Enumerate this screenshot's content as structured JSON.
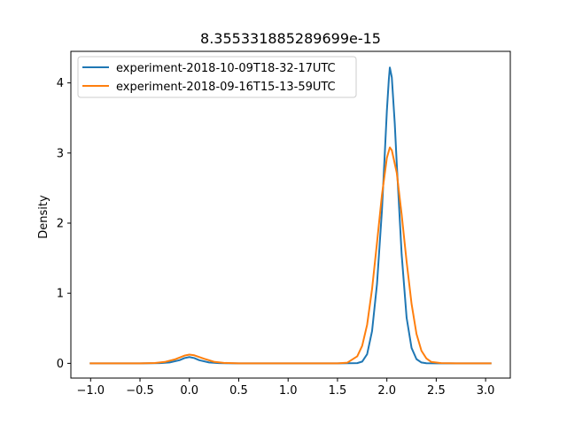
{
  "chart_data": {
    "type": "line",
    "title": "8.355331885289699e-15",
    "xlabel": "",
    "ylabel": "Density",
    "xlim": [
      -1.2,
      3.25
    ],
    "ylim": [
      -0.21,
      4.45
    ],
    "xticks": [
      -1.0,
      -0.5,
      0.0,
      0.5,
      1.0,
      1.5,
      2.0,
      2.5,
      3.0
    ],
    "xtick_labels": [
      "−1.0",
      "−0.5",
      "0.0",
      "0.5",
      "1.0",
      "1.5",
      "2.0",
      "2.5",
      "3.0"
    ],
    "yticks": [
      0,
      1,
      2,
      3,
      4
    ],
    "ytick_labels": [
      "0",
      "1",
      "2",
      "3",
      "4"
    ],
    "grid": false,
    "legend_position": "upper-left",
    "series": [
      {
        "name": "experiment-2018-10-09T18-32-17UTC",
        "color": "#1f77b4",
        "points": [
          [
            -1.0,
            0.0
          ],
          [
            -0.5,
            0.0
          ],
          [
            -0.3,
            0.003
          ],
          [
            -0.2,
            0.013
          ],
          [
            -0.1,
            0.045
          ],
          [
            -0.05,
            0.075
          ],
          [
            0.0,
            0.09
          ],
          [
            0.05,
            0.075
          ],
          [
            0.1,
            0.045
          ],
          [
            0.2,
            0.013
          ],
          [
            0.3,
            0.003
          ],
          [
            0.5,
            0.0
          ],
          [
            1.5,
            0.0
          ],
          [
            1.7,
            0.003
          ],
          [
            1.75,
            0.025
          ],
          [
            1.8,
            0.13
          ],
          [
            1.85,
            0.46
          ],
          [
            1.9,
            1.13
          ],
          [
            1.95,
            2.18
          ],
          [
            1.98,
            3.02
          ],
          [
            2.0,
            3.6
          ],
          [
            2.02,
            4.05
          ],
          [
            2.03,
            4.22
          ],
          [
            2.05,
            4.08
          ],
          [
            2.08,
            3.42
          ],
          [
            2.1,
            2.85
          ],
          [
            2.15,
            1.55
          ],
          [
            2.2,
            0.65
          ],
          [
            2.25,
            0.22
          ],
          [
            2.3,
            0.06
          ],
          [
            2.35,
            0.012
          ],
          [
            2.4,
            0.002
          ],
          [
            2.5,
            0.0
          ],
          [
            3.05,
            0.0
          ]
        ]
      },
      {
        "name": "experiment-2018-09-16T15-13-59UTC",
        "color": "#ff7f0e",
        "points": [
          [
            -1.0,
            0.0
          ],
          [
            -0.5,
            0.0
          ],
          [
            -0.35,
            0.005
          ],
          [
            -0.25,
            0.02
          ],
          [
            -0.15,
            0.055
          ],
          [
            -0.05,
            0.11
          ],
          [
            0.0,
            0.125
          ],
          [
            0.05,
            0.115
          ],
          [
            0.15,
            0.065
          ],
          [
            0.25,
            0.022
          ],
          [
            0.35,
            0.006
          ],
          [
            0.5,
            0.0
          ],
          [
            1.5,
            0.0
          ],
          [
            1.6,
            0.01
          ],
          [
            1.7,
            0.1
          ],
          [
            1.75,
            0.25
          ],
          [
            1.8,
            0.55
          ],
          [
            1.85,
            1.06
          ],
          [
            1.9,
            1.72
          ],
          [
            1.95,
            2.4
          ],
          [
            2.0,
            2.93
          ],
          [
            2.03,
            3.08
          ],
          [
            2.05,
            3.04
          ],
          [
            2.1,
            2.72
          ],
          [
            2.15,
            2.12
          ],
          [
            2.2,
            1.45
          ],
          [
            2.25,
            0.85
          ],
          [
            2.3,
            0.42
          ],
          [
            2.35,
            0.18
          ],
          [
            2.4,
            0.07
          ],
          [
            2.45,
            0.02
          ],
          [
            2.55,
            0.003
          ],
          [
            2.7,
            0.0
          ],
          [
            3.05,
            0.0
          ]
        ]
      }
    ]
  }
}
